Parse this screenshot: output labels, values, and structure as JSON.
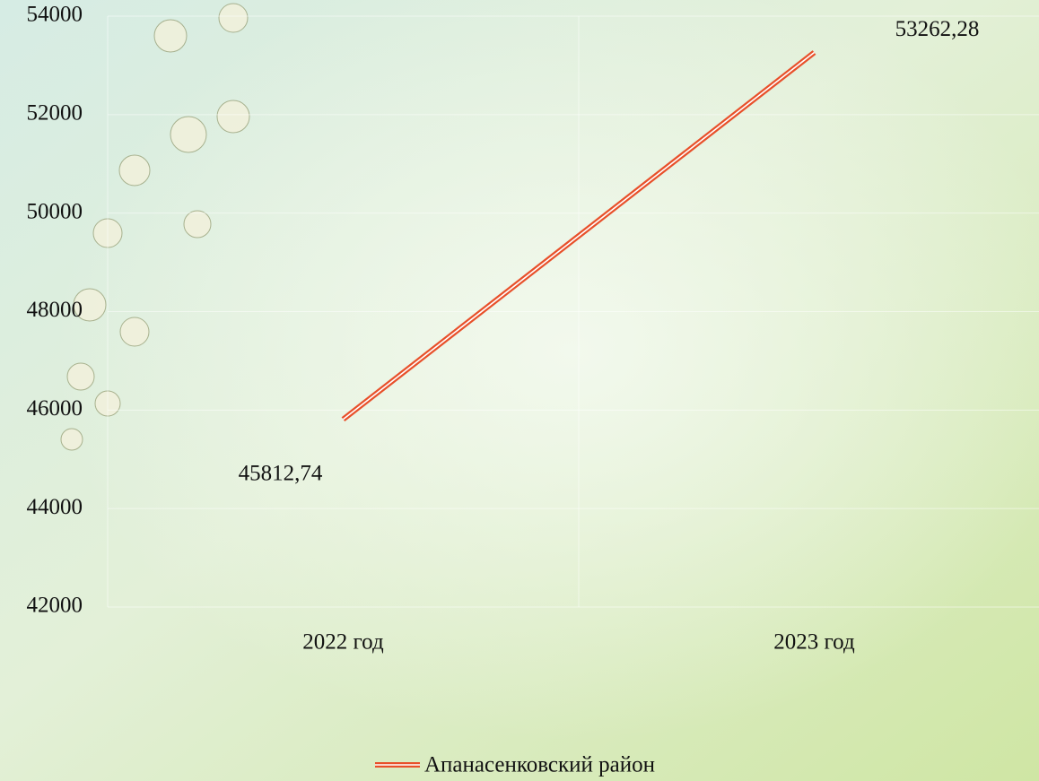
{
  "chart_data": {
    "type": "line",
    "categories": [
      "2022 год",
      "2023 год"
    ],
    "series": [
      {
        "name": "Апанасенковский район",
        "color": "#e8502a",
        "values": [
          45812.74,
          53262.28
        ],
        "value_labels": [
          "45812,74",
          "53262,28"
        ]
      }
    ],
    "ylim": [
      42000,
      54000
    ],
    "yticks": [
      42000,
      44000,
      46000,
      48000,
      50000,
      52000,
      54000
    ],
    "grid": true,
    "legend": "bottom"
  }
}
